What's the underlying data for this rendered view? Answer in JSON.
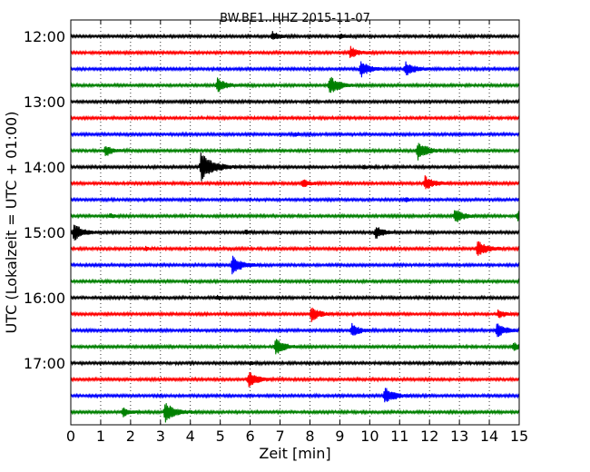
{
  "chart_data": {
    "type": "line",
    "title": "BW.BE1..HHZ 2015-11-07",
    "xlabel": "Zeit  [min]",
    "ylabel": "UTC (Lokalzeit = UTC + 01:00)",
    "xlim": [
      0,
      15
    ],
    "x_ticks": [
      0,
      1,
      2,
      3,
      4,
      5,
      6,
      7,
      8,
      9,
      10,
      11,
      12,
      13,
      14,
      15
    ],
    "y_tick_labels": [
      "12:00",
      "13:00",
      "14:00",
      "15:00",
      "16:00",
      "17:00"
    ],
    "row_start_times": [
      "12:00",
      "12:15",
      "12:30",
      "12:45",
      "13:00",
      "13:15",
      "13:30",
      "13:45",
      "14:00",
      "14:15",
      "14:30",
      "14:45",
      "15:00",
      "15:15",
      "15:30",
      "15:45",
      "16:00",
      "16:15",
      "16:30",
      "16:45",
      "17:00",
      "17:15",
      "17:30",
      "17:45"
    ],
    "row_colors": [
      "#000000",
      "#ff0000",
      "#0000ff",
      "#008000"
    ],
    "grid": "vertical dotted",
    "events": [
      {
        "row": 0,
        "t": 6.75,
        "amp": 0.3
      },
      {
        "row": 0,
        "t": 9.0,
        "amp": 0.15
      },
      {
        "row": 1,
        "t": 9.35,
        "amp": 0.4
      },
      {
        "row": 2,
        "t": 9.7,
        "amp": 0.55
      },
      {
        "row": 2,
        "t": 11.2,
        "amp": 0.5
      },
      {
        "row": 3,
        "t": 4.9,
        "amp": 0.5
      },
      {
        "row": 3,
        "t": 8.65,
        "amp": 0.65
      },
      {
        "row": 6,
        "t": 7.5,
        "amp": 0.12
      },
      {
        "row": 7,
        "t": 1.15,
        "amp": 0.4
      },
      {
        "row": 7,
        "t": 11.6,
        "amp": 0.65
      },
      {
        "row": 8,
        "t": 4.35,
        "amp": 1.0
      },
      {
        "row": 8,
        "t": 9.8,
        "amp": 0.12
      },
      {
        "row": 9,
        "t": 7.75,
        "amp": 0.3
      },
      {
        "row": 9,
        "t": 11.85,
        "amp": 0.5
      },
      {
        "row": 10,
        "t": 11.2,
        "amp": 0.12
      },
      {
        "row": 11,
        "t": 1.3,
        "amp": 0.15
      },
      {
        "row": 11,
        "t": 12.85,
        "amp": 0.5
      },
      {
        "row": 11,
        "t": 14.95,
        "amp": 0.3
      },
      {
        "row": 12,
        "t": 0.1,
        "amp": 0.6
      },
      {
        "row": 12,
        "t": 5.85,
        "amp": 0.15
      },
      {
        "row": 12,
        "t": 10.2,
        "amp": 0.45
      },
      {
        "row": 13,
        "t": 2.5,
        "amp": 0.12
      },
      {
        "row": 13,
        "t": 13.6,
        "amp": 0.6
      },
      {
        "row": 14,
        "t": 5.4,
        "amp": 0.65
      },
      {
        "row": 16,
        "t": 4.9,
        "amp": 0.15
      },
      {
        "row": 17,
        "t": 8.05,
        "amp": 0.5
      },
      {
        "row": 17,
        "t": 14.3,
        "amp": 0.3
      },
      {
        "row": 18,
        "t": 9.4,
        "amp": 0.45
      },
      {
        "row": 18,
        "t": 14.25,
        "amp": 0.5
      },
      {
        "row": 19,
        "t": 6.85,
        "amp": 0.55
      },
      {
        "row": 19,
        "t": 14.8,
        "amp": 0.3
      },
      {
        "row": 20,
        "t": 6.0,
        "amp": 0.1
      },
      {
        "row": 21,
        "t": 5.95,
        "amp": 0.55
      },
      {
        "row": 22,
        "t": 10.5,
        "amp": 0.6
      },
      {
        "row": 23,
        "t": 1.75,
        "amp": 0.3
      },
      {
        "row": 23,
        "t": 3.15,
        "amp": 0.7
      }
    ]
  }
}
